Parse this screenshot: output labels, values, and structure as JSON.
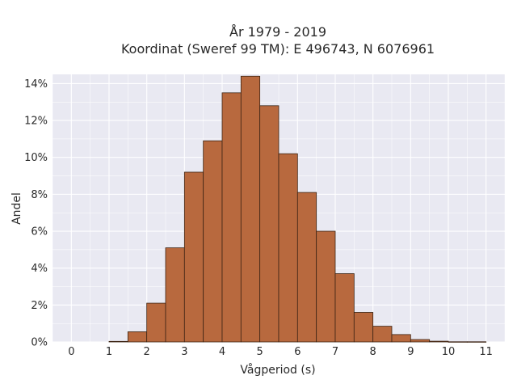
{
  "chart_data": {
    "type": "bar",
    "title": "År 1979 - 2019",
    "subtitle": "Koordinat (Sweref 99 TM): E 496743, N 6076961",
    "xlabel": "Vågperiod (s)",
    "ylabel": "Andel",
    "xlim": [
      -0.5,
      11.5
    ],
    "ylim": [
      0,
      0.145
    ],
    "xticks": [
      "0",
      "1",
      "2",
      "3",
      "4",
      "5",
      "6",
      "7",
      "8",
      "9",
      "10",
      "11"
    ],
    "yticks": [
      "0%",
      "2%",
      "4%",
      "6%",
      "8%",
      "10%",
      "12%",
      "14%"
    ],
    "grid": true,
    "bin_width": 0.5,
    "bins_start": [
      1.0,
      1.5,
      2.0,
      2.5,
      3.0,
      3.5,
      4.0,
      4.5,
      5.0,
      5.5,
      6.0,
      6.5,
      7.0,
      7.5,
      8.0,
      8.5,
      9.0,
      9.5,
      10.0,
      10.5
    ],
    "values": [
      0.0003,
      0.0055,
      0.021,
      0.051,
      0.092,
      0.109,
      0.135,
      0.144,
      0.128,
      0.102,
      0.081,
      0.06,
      0.037,
      0.016,
      0.0085,
      0.004,
      0.0013,
      0.0004,
      0.0001,
      0.0001
    ],
    "colors": {
      "bar": "#b8693e",
      "edge": "#3d2414",
      "plot_bg": "#e9e9f2",
      "grid": "#ffffff"
    }
  }
}
